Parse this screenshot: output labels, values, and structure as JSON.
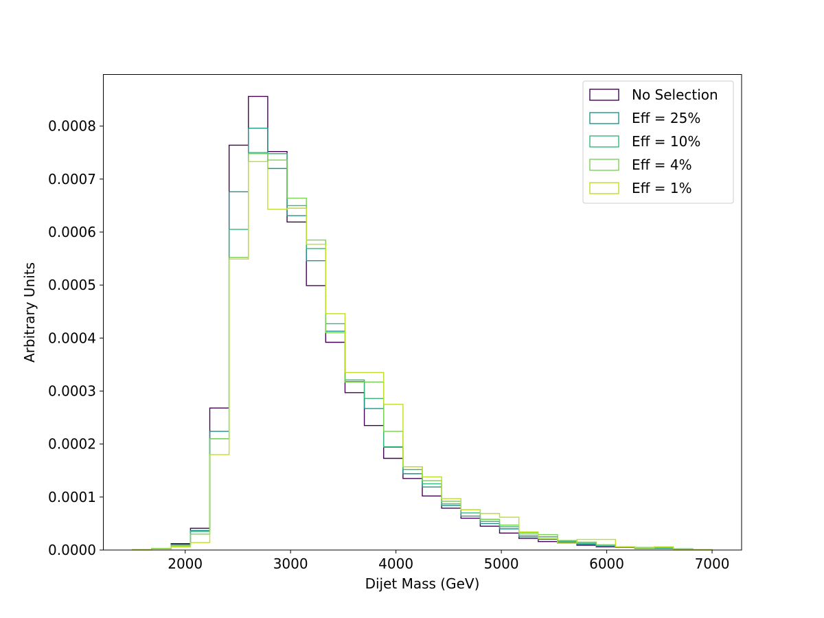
{
  "chart_data": {
    "type": "histogram-step",
    "title": "",
    "xlabel": "Dijet Mass (GeV)",
    "ylabel": "Arbitrary Units",
    "xlim": [
      1220,
      7280
    ],
    "ylim": [
      0,
      0.000898
    ],
    "xticks": [
      2000,
      3000,
      4000,
      5000,
      6000,
      7000
    ],
    "xtick_labels": [
      "2000",
      "3000",
      "4000",
      "5000",
      "6000",
      "7000"
    ],
    "yticks": [
      0,
      0.0001,
      0.0002,
      0.0003,
      0.0004,
      0.0005,
      0.0006,
      0.0007,
      0.0008
    ],
    "ytick_labels": [
      "0.0000",
      "0.0001",
      "0.0002",
      "0.0003",
      "0.0004",
      "0.0005",
      "0.0006",
      "0.0007",
      "0.0008"
    ],
    "grid": false,
    "legend_position": "top-right",
    "bin_edges": [
      1500,
      1683.33,
      1866.67,
      2050,
      2233.33,
      2416.67,
      2600,
      2783.33,
      2966.67,
      3150,
      3333.33,
      3516.67,
      3700,
      3883.33,
      4066.67,
      4250,
      4433.33,
      4616.67,
      4800,
      4983.33,
      5166.67,
      5350,
      5533.33,
      5716.67,
      5900,
      6083.33,
      6266.67,
      6450,
      6633.33,
      6816.67,
      7000
    ],
    "series": [
      {
        "name": "No Selection",
        "color": "#440154",
        "values": [
          1e-06,
          3e-06,
          1.2e-05,
          4.1e-05,
          0.000268,
          0.000764,
          0.000856,
          0.000752,
          0.000619,
          0.000499,
          0.000392,
          0.000297,
          0.000235,
          0.000173,
          0.000135,
          0.000102,
          7.9e-05,
          6e-05,
          4.5e-05,
          3.2e-05,
          2.2e-05,
          1.6e-05,
          1.3e-05,
          9e-06,
          6e-06,
          5e-06,
          3e-06,
          3e-06,
          2e-06,
          1e-06
        ]
      },
      {
        "name": "Eff = 25%",
        "color": "#21918c",
        "values": [
          1e-06,
          3e-06,
          1e-05,
          3.7e-05,
          0.000224,
          0.000676,
          0.000796,
          0.00072,
          0.000631,
          0.000546,
          0.000413,
          0.000318,
          0.000267,
          0.000194,
          0.000144,
          0.000119,
          8.4e-05,
          6.4e-05,
          5e-05,
          4e-05,
          2.5e-05,
          2e-05,
          1.5e-05,
          1.1e-05,
          7e-06,
          5e-06,
          3e-06,
          3e-06,
          2e-06,
          1e-06
        ]
      },
      {
        "name": "Eff = 10%",
        "color": "#35b779",
        "values": [
          1e-06,
          3e-06,
          1e-05,
          3.5e-05,
          0.00021,
          0.000605,
          0.00075,
          0.000748,
          0.00065,
          0.000569,
          0.000427,
          0.000321,
          0.000286,
          0.000195,
          0.000152,
          0.000125,
          8.7e-05,
          7e-05,
          5.4e-05,
          4.4e-05,
          2.8e-05,
          2.5e-05,
          1.7e-05,
          1.3e-05,
          8e-06,
          6e-06,
          4e-06,
          4e-06,
          2e-06,
          1e-06
        ]
      },
      {
        "name": "Eff = 4%",
        "color": "#7ad151",
        "values": [
          1e-06,
          3e-06,
          8e-06,
          3e-05,
          0.00021,
          0.000552,
          0.000748,
          0.000736,
          0.000664,
          0.000585,
          0.00041,
          0.000317,
          0.000317,
          0.000224,
          0.000157,
          0.000131,
          9.2e-05,
          7.6e-05,
          5.8e-05,
          4.7e-05,
          3.2e-05,
          2.9e-05,
          1.8e-05,
          1.5e-05,
          1e-05,
          6e-06,
          5e-06,
          5e-06,
          2e-06,
          1e-06
        ]
      },
      {
        "name": "Eff = 1%",
        "color": "#bddf26",
        "values": [
          1e-06,
          2e-06,
          6e-06,
          1.4e-05,
          0.00018,
          0.000549,
          0.000733,
          0.000643,
          0.000645,
          0.000577,
          0.000446,
          0.000335,
          0.000335,
          0.000275,
          0.000157,
          0.000138,
          9.7e-05,
          7.6e-05,
          6.9e-05,
          6.2e-05,
          3.4e-05,
          2.2e-05,
          1.3e-05,
          2e-05,
          2e-05,
          6e-06,
          4e-06,
          6e-06,
          1e-06,
          1e-06
        ]
      }
    ]
  }
}
